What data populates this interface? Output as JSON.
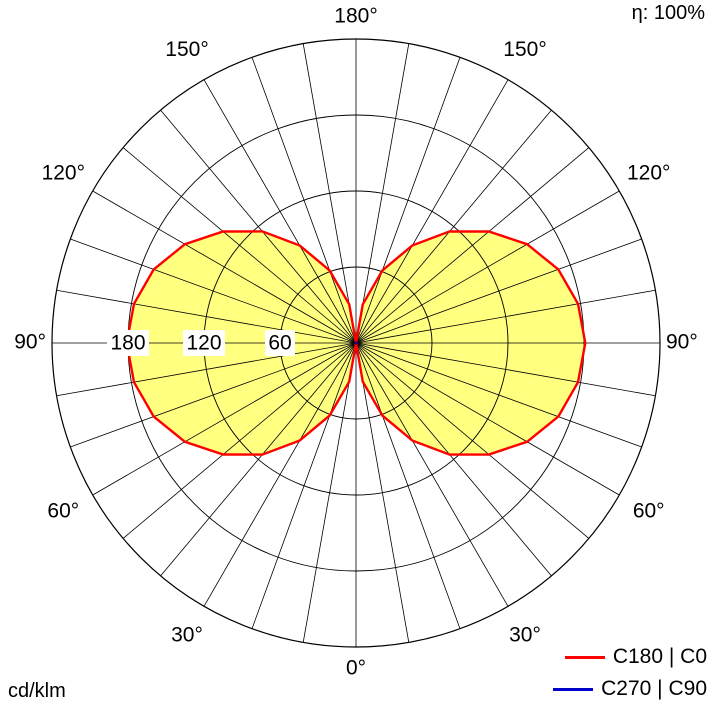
{
  "efficiency": "η: 100%",
  "unit": "cd/klm",
  "chart_data": {
    "type": "polar",
    "title": "",
    "angle_labels_right": [
      "0°",
      "30°",
      "60°",
      "90°",
      "120°",
      "150°",
      "180°"
    ],
    "angle_labels_left": [
      "30°",
      "60°",
      "90°",
      "120°",
      "150°"
    ],
    "radial_ticks": [
      60,
      120,
      180
    ],
    "radial_tick_labels": [
      "60",
      "120",
      "180"
    ],
    "rmax": 240,
    "grid": true,
    "legend_position": "bottom-right",
    "series": [
      {
        "name": "C180 | C0",
        "color": "#ff0000",
        "angles": [
          0,
          10,
          20,
          30,
          40,
          50,
          60,
          70,
          80,
          90,
          100,
          110,
          120,
          130,
          140,
          150,
          160,
          170,
          180
        ],
        "values": [
          0,
          31,
          61,
          89,
          115,
          137,
          156,
          170,
          178,
          181,
          178,
          170,
          156,
          137,
          115,
          89,
          61,
          31,
          0
        ]
      },
      {
        "name": "C270 | C90",
        "color": "#0000cc",
        "angles": [
          0,
          180
        ],
        "values": [
          1,
          1
        ]
      }
    ]
  }
}
